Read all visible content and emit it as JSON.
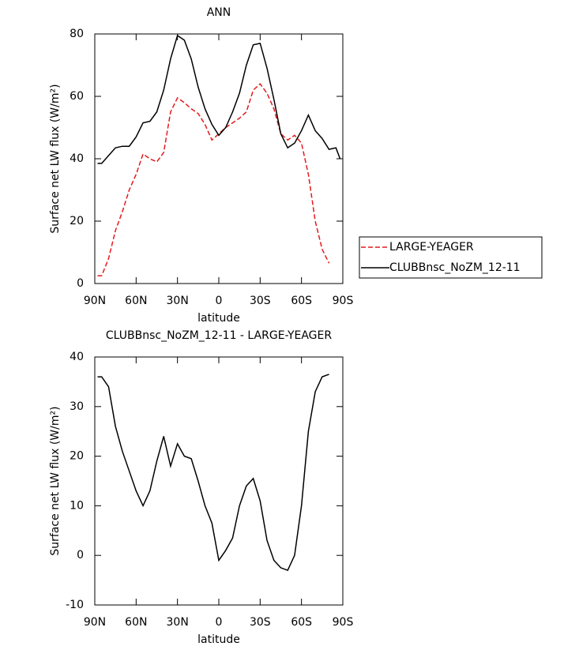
{
  "chart_data": [
    {
      "type": "line",
      "title": "ANN",
      "xlabel": "latitude",
      "ylabel": "Surface net LW flux (W/m²)",
      "x": [
        88,
        85,
        80,
        75,
        70,
        65,
        60,
        55,
        50,
        45,
        40,
        35,
        30,
        25,
        20,
        15,
        10,
        5,
        0,
        -5,
        -10,
        -15,
        -20,
        -25,
        -30,
        -35,
        -40,
        -45,
        -50,
        -55,
        -60,
        -65,
        -70,
        -75,
        -80,
        -85,
        -88
      ],
      "xlim": [
        90,
        -90
      ],
      "xticks": [
        {
          "value": 90,
          "label": "90N"
        },
        {
          "value": 60,
          "label": "60N"
        },
        {
          "value": 30,
          "label": "30N"
        },
        0,
        {
          "value": -30,
          "label": "30S"
        },
        {
          "value": -60,
          "label": "60S"
        },
        {
          "value": -90,
          "label": "90S"
        }
      ],
      "ylim": [
        0,
        80
      ],
      "yticks": [
        0,
        20,
        40,
        60,
        80
      ],
      "legend": "right",
      "series": [
        {
          "name": "LARGE-YEAGER",
          "color": "#e41a1c",
          "dashed": true,
          "values": [
            2.5,
            2.5,
            8,
            17,
            23,
            30,
            35,
            41.5,
            40,
            39,
            42,
            55,
            59.5,
            58,
            56,
            54.5,
            51,
            46,
            48,
            50,
            51.5,
            53,
            55,
            62,
            64,
            61,
            56,
            48,
            46,
            47.5,
            45,
            35,
            20,
            11,
            6.5,
            null,
            null
          ]
        },
        {
          "name": "CLUBBnsc_NoZM_12-11",
          "color": "#000000",
          "dashed": false,
          "values": [
            38.5,
            38.5,
            41,
            43.5,
            44,
            44,
            47,
            51.5,
            52,
            55,
            62,
            72,
            79.5,
            78,
            72,
            63,
            56,
            51,
            47.5,
            50,
            55,
            61,
            70,
            76.5,
            77,
            69,
            59,
            48,
            43.5,
            45,
            49,
            54,
            49,
            46.5,
            43,
            43.5,
            40
          ]
        }
      ]
    },
    {
      "type": "line",
      "title": "CLUBBnsc_NoZM_12-11 - LARGE-YEAGER",
      "xlabel": "latitude",
      "ylabel": "Surface net LW flux (W/m²)",
      "x": [
        88,
        85,
        80,
        75,
        70,
        65,
        60,
        55,
        50,
        45,
        40,
        35,
        30,
        25,
        20,
        15,
        10,
        5,
        0,
        -5,
        -10,
        -15,
        -20,
        -25,
        -30,
        -35,
        -40,
        -45,
        -50,
        -55,
        -60,
        -65,
        -70,
        -75,
        -80,
        -85,
        -88
      ],
      "xlim": [
        90,
        -90
      ],
      "xticks": [
        {
          "value": 90,
          "label": "90N"
        },
        {
          "value": 60,
          "label": "60N"
        },
        {
          "value": 30,
          "label": "30N"
        },
        0,
        {
          "value": -30,
          "label": "30S"
        },
        {
          "value": -60,
          "label": "60S"
        },
        {
          "value": -90,
          "label": "90S"
        }
      ],
      "ylim": [
        -10,
        40
      ],
      "yticks": [
        -10,
        0,
        10,
        20,
        30,
        40
      ],
      "series": [
        {
          "color": "#000000",
          "dashed": false,
          "values": [
            36,
            36,
            34,
            26,
            21,
            17,
            13,
            10,
            13,
            19,
            24,
            18,
            22.5,
            20,
            19.5,
            15,
            10,
            6.5,
            -1,
            1,
            3.5,
            10,
            14,
            15.5,
            11,
            3,
            -1,
            -2.5,
            -3,
            0,
            10,
            25,
            33,
            36,
            36.5,
            null,
            null
          ]
        }
      ]
    }
  ]
}
